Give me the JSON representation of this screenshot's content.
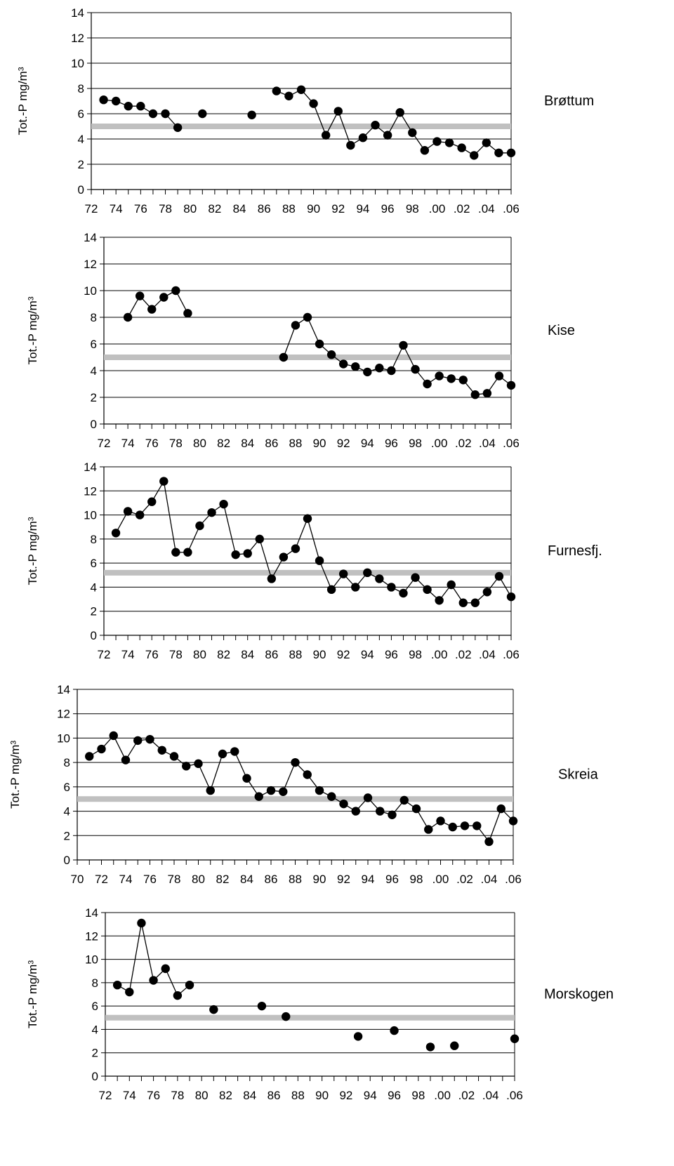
{
  "chart_data": [
    {
      "type": "line",
      "title": "Brøttum",
      "ylabel": "Tot.-P mg/m³",
      "ylim": [
        0,
        14
      ],
      "yticks": [
        0,
        2,
        4,
        6,
        8,
        10,
        12,
        14
      ],
      "xlim": [
        1972,
        2006
      ],
      "xtick_labels": [
        {
          "x": 1972,
          "label": "72"
        },
        {
          "x": 1974,
          "label": "74"
        },
        {
          "x": 1976,
          "label": "76"
        },
        {
          "x": 1978,
          "label": "78"
        },
        {
          "x": 1980,
          "label": "80"
        },
        {
          "x": 1982,
          "label": "82"
        },
        {
          "x": 1984,
          "label": "84"
        },
        {
          "x": 1986,
          "label": "86"
        },
        {
          "x": 1988,
          "label": "88"
        },
        {
          "x": 1990,
          "label": "90"
        },
        {
          "x": 1992,
          "label": "92"
        },
        {
          "x": 1994,
          "label": "94"
        },
        {
          "x": 1996,
          "label": "96"
        },
        {
          "x": 1998,
          "label": "98"
        },
        {
          "x": 2000,
          "label": ".00"
        },
        {
          "x": 2002,
          "label": ".02"
        },
        {
          "x": 2004,
          "label": ".04"
        },
        {
          "x": 2006,
          "label": ".06"
        }
      ],
      "reference_line": 5.0,
      "grid": "horizontal",
      "x": [
        1973,
        1974,
        1975,
        1976,
        1977,
        1978,
        1979,
        1981,
        1985,
        1987,
        1988,
        1989,
        1990,
        1991,
        1992,
        1993,
        1994,
        1995,
        1996,
        1997,
        1998,
        1999,
        2000,
        2001,
        2002,
        2003,
        2004,
        2005,
        2006
      ],
      "values": [
        7.1,
        7.0,
        6.6,
        6.6,
        6.0,
        6.0,
        4.9,
        6.0,
        5.9,
        7.8,
        7.4,
        7.9,
        6.8,
        4.3,
        6.2,
        3.5,
        4.1,
        5.1,
        4.3,
        6.1,
        4.5,
        3.1,
        3.8,
        3.7,
        3.3,
        2.7,
        3.7,
        2.9,
        2.9
      ],
      "breaks_after": [
        1979,
        1981,
        1985
      ]
    },
    {
      "type": "line",
      "title": "Kise",
      "ylabel": "Tot.-P mg/m³",
      "ylim": [
        0,
        14
      ],
      "yticks": [
        0,
        2,
        4,
        6,
        8,
        10,
        12,
        14
      ],
      "xlim": [
        1972,
        2006
      ],
      "xtick_labels": [
        {
          "x": 1972,
          "label": "72"
        },
        {
          "x": 1974,
          "label": "74"
        },
        {
          "x": 1976,
          "label": "76"
        },
        {
          "x": 1978,
          "label": "78"
        },
        {
          "x": 1980,
          "label": "80"
        },
        {
          "x": 1982,
          "label": "82"
        },
        {
          "x": 1984,
          "label": "84"
        },
        {
          "x": 1986,
          "label": "86"
        },
        {
          "x": 1988,
          "label": "88"
        },
        {
          "x": 1990,
          "label": "90"
        },
        {
          "x": 1992,
          "label": "92"
        },
        {
          "x": 1994,
          "label": "94"
        },
        {
          "x": 1996,
          "label": "96"
        },
        {
          "x": 1998,
          "label": "98"
        },
        {
          "x": 2000,
          "label": ".00"
        },
        {
          "x": 2002,
          "label": ".02"
        },
        {
          "x": 2004,
          "label": ".04"
        },
        {
          "x": 2006,
          "label": ".06"
        }
      ],
      "reference_line": 5.0,
      "grid": "horizontal",
      "x": [
        1974,
        1975,
        1976,
        1977,
        1978,
        1979,
        1987,
        1988,
        1989,
        1990,
        1991,
        1992,
        1993,
        1994,
        1995,
        1996,
        1997,
        1998,
        1999,
        2000,
        2001,
        2002,
        2003,
        2004,
        2005,
        2006
      ],
      "values": [
        8.0,
        9.6,
        8.6,
        9.5,
        10.0,
        8.3,
        5.0,
        7.4,
        8.0,
        6.0,
        5.2,
        4.5,
        4.3,
        3.9,
        4.2,
        4.0,
        5.9,
        4.1,
        3.0,
        3.6,
        3.4,
        3.3,
        2.2,
        2.3,
        3.6,
        2.9
      ],
      "breaks_after": [
        1979
      ]
    },
    {
      "type": "line",
      "title": "Furnesfj.",
      "ylabel": "Tot.-P mg/m³",
      "ylim": [
        0,
        14
      ],
      "yticks": [
        0,
        2,
        4,
        6,
        8,
        10,
        12,
        14
      ],
      "xlim": [
        1972,
        2006
      ],
      "xtick_labels": [
        {
          "x": 1972,
          "label": "72"
        },
        {
          "x": 1974,
          "label": "74"
        },
        {
          "x": 1976,
          "label": "76"
        },
        {
          "x": 1978,
          "label": "78"
        },
        {
          "x": 1980,
          "label": "80"
        },
        {
          "x": 1982,
          "label": "82"
        },
        {
          "x": 1984,
          "label": "84"
        },
        {
          "x": 1986,
          "label": "86"
        },
        {
          "x": 1988,
          "label": "88"
        },
        {
          "x": 1990,
          "label": "90"
        },
        {
          "x": 1992,
          "label": "92"
        },
        {
          "x": 1994,
          "label": "94"
        },
        {
          "x": 1996,
          "label": "96"
        },
        {
          "x": 1998,
          "label": "98"
        },
        {
          "x": 2000,
          "label": ".00"
        },
        {
          "x": 2002,
          "label": ".02"
        },
        {
          "x": 2004,
          "label": ".04"
        },
        {
          "x": 2006,
          "label": ".06"
        }
      ],
      "reference_line": 5.2,
      "grid": "horizontal",
      "x": [
        1973,
        1974,
        1975,
        1976,
        1977,
        1978,
        1979,
        1980,
        1981,
        1982,
        1983,
        1984,
        1985,
        1986,
        1987,
        1988,
        1989,
        1990,
        1991,
        1992,
        1993,
        1994,
        1995,
        1996,
        1997,
        1998,
        1999,
        2000,
        2001,
        2002,
        2003,
        2004,
        2005,
        2006
      ],
      "values": [
        8.5,
        10.3,
        10.0,
        11.1,
        12.8,
        6.9,
        6.9,
        9.1,
        10.2,
        10.9,
        6.7,
        6.8,
        8.0,
        4.7,
        6.5,
        7.2,
        9.7,
        6.2,
        3.8,
        5.1,
        4.0,
        5.2,
        4.7,
        4.0,
        3.5,
        4.8,
        3.8,
        2.9,
        4.2,
        2.7,
        2.7,
        3.6,
        4.9,
        3.2
      ],
      "breaks_after": []
    },
    {
      "type": "line",
      "title": "Skreia",
      "ylabel": "Tot.-P mg/m³",
      "ylim": [
        0,
        14
      ],
      "yticks": [
        0,
        2,
        4,
        6,
        8,
        10,
        12,
        14
      ],
      "xlim": [
        1970,
        2006
      ],
      "xtick_labels": [
        {
          "x": 1970,
          "label": "70"
        },
        {
          "x": 1972,
          "label": "72"
        },
        {
          "x": 1974,
          "label": "74"
        },
        {
          "x": 1976,
          "label": "76"
        },
        {
          "x": 1978,
          "label": "78"
        },
        {
          "x": 1980,
          "label": "80"
        },
        {
          "x": 1982,
          "label": "82"
        },
        {
          "x": 1984,
          "label": "84"
        },
        {
          "x": 1986,
          "label": "86"
        },
        {
          "x": 1988,
          "label": "88"
        },
        {
          "x": 1990,
          "label": "90"
        },
        {
          "x": 1992,
          "label": "92"
        },
        {
          "x": 1994,
          "label": "94"
        },
        {
          "x": 1996,
          "label": "96"
        },
        {
          "x": 1998,
          "label": "98"
        },
        {
          "x": 2000,
          "label": ".00"
        },
        {
          "x": 2002,
          "label": ".02"
        },
        {
          "x": 2004,
          "label": ".04"
        },
        {
          "x": 2006,
          "label": ".06"
        }
      ],
      "reference_line": 5.0,
      "grid": "horizontal",
      "x": [
        1971,
        1972,
        1973,
        1974,
        1975,
        1976,
        1977,
        1978,
        1979,
        1980,
        1981,
        1982,
        1983,
        1984,
        1985,
        1986,
        1987,
        1988,
        1989,
        1990,
        1991,
        1992,
        1993,
        1994,
        1995,
        1996,
        1997,
        1998,
        1999,
        2000,
        2001,
        2002,
        2003,
        2004,
        2005,
        2006
      ],
      "values": [
        8.5,
        9.1,
        10.2,
        8.2,
        9.8,
        9.9,
        9.0,
        8.5,
        7.7,
        7.9,
        5.7,
        8.7,
        8.9,
        6.7,
        5.2,
        5.7,
        5.6,
        8.0,
        7.0,
        5.7,
        5.2,
        4.6,
        4.0,
        5.1,
        4.0,
        3.7,
        4.9,
        4.2,
        2.5,
        3.2,
        2.7,
        2.8,
        2.8,
        1.5,
        4.2,
        3.2
      ],
      "breaks_after": []
    },
    {
      "type": "line",
      "title": "Morskogen",
      "ylabel": "Tot.-P mg/m³",
      "ylim": [
        0,
        14
      ],
      "yticks": [
        0,
        2,
        4,
        6,
        8,
        10,
        12,
        14
      ],
      "xlim": [
        1972,
        2006
      ],
      "xtick_labels": [
        {
          "x": 1972,
          "label": "72"
        },
        {
          "x": 1974,
          "label": "74"
        },
        {
          "x": 1976,
          "label": "76"
        },
        {
          "x": 1978,
          "label": "78"
        },
        {
          "x": 1980,
          "label": "80"
        },
        {
          "x": 1982,
          "label": "82"
        },
        {
          "x": 1984,
          "label": "84"
        },
        {
          "x": 1986,
          "label": "86"
        },
        {
          "x": 1988,
          "label": "88"
        },
        {
          "x": 1990,
          "label": "90"
        },
        {
          "x": 1992,
          "label": "92"
        },
        {
          "x": 1994,
          "label": "94"
        },
        {
          "x": 1996,
          "label": "96"
        },
        {
          "x": 1998,
          "label": "98"
        },
        {
          "x": 2000,
          "label": ".00"
        },
        {
          "x": 2002,
          "label": ".02"
        },
        {
          "x": 2004,
          "label": ".04"
        },
        {
          "x": 2006,
          "label": ".06"
        }
      ],
      "reference_line": 5.0,
      "grid": "horizontal",
      "x": [
        1973,
        1974,
        1975,
        1976,
        1977,
        1978,
        1979,
        1981,
        1985,
        1987,
        1993,
        1996,
        1999,
        2001,
        2006
      ],
      "values": [
        7.8,
        7.2,
        13.1,
        8.2,
        9.2,
        6.9,
        7.8,
        5.7,
        6.0,
        5.1,
        3.4,
        3.9,
        2.5,
        2.6,
        3.2
      ],
      "breaks_after": [
        1979,
        1981,
        1985,
        1987,
        1993,
        1996,
        1999,
        2001
      ]
    }
  ],
  "colors": {
    "reference_line": "#c0c0c0",
    "series": "#000000",
    "grid": "#000000"
  }
}
